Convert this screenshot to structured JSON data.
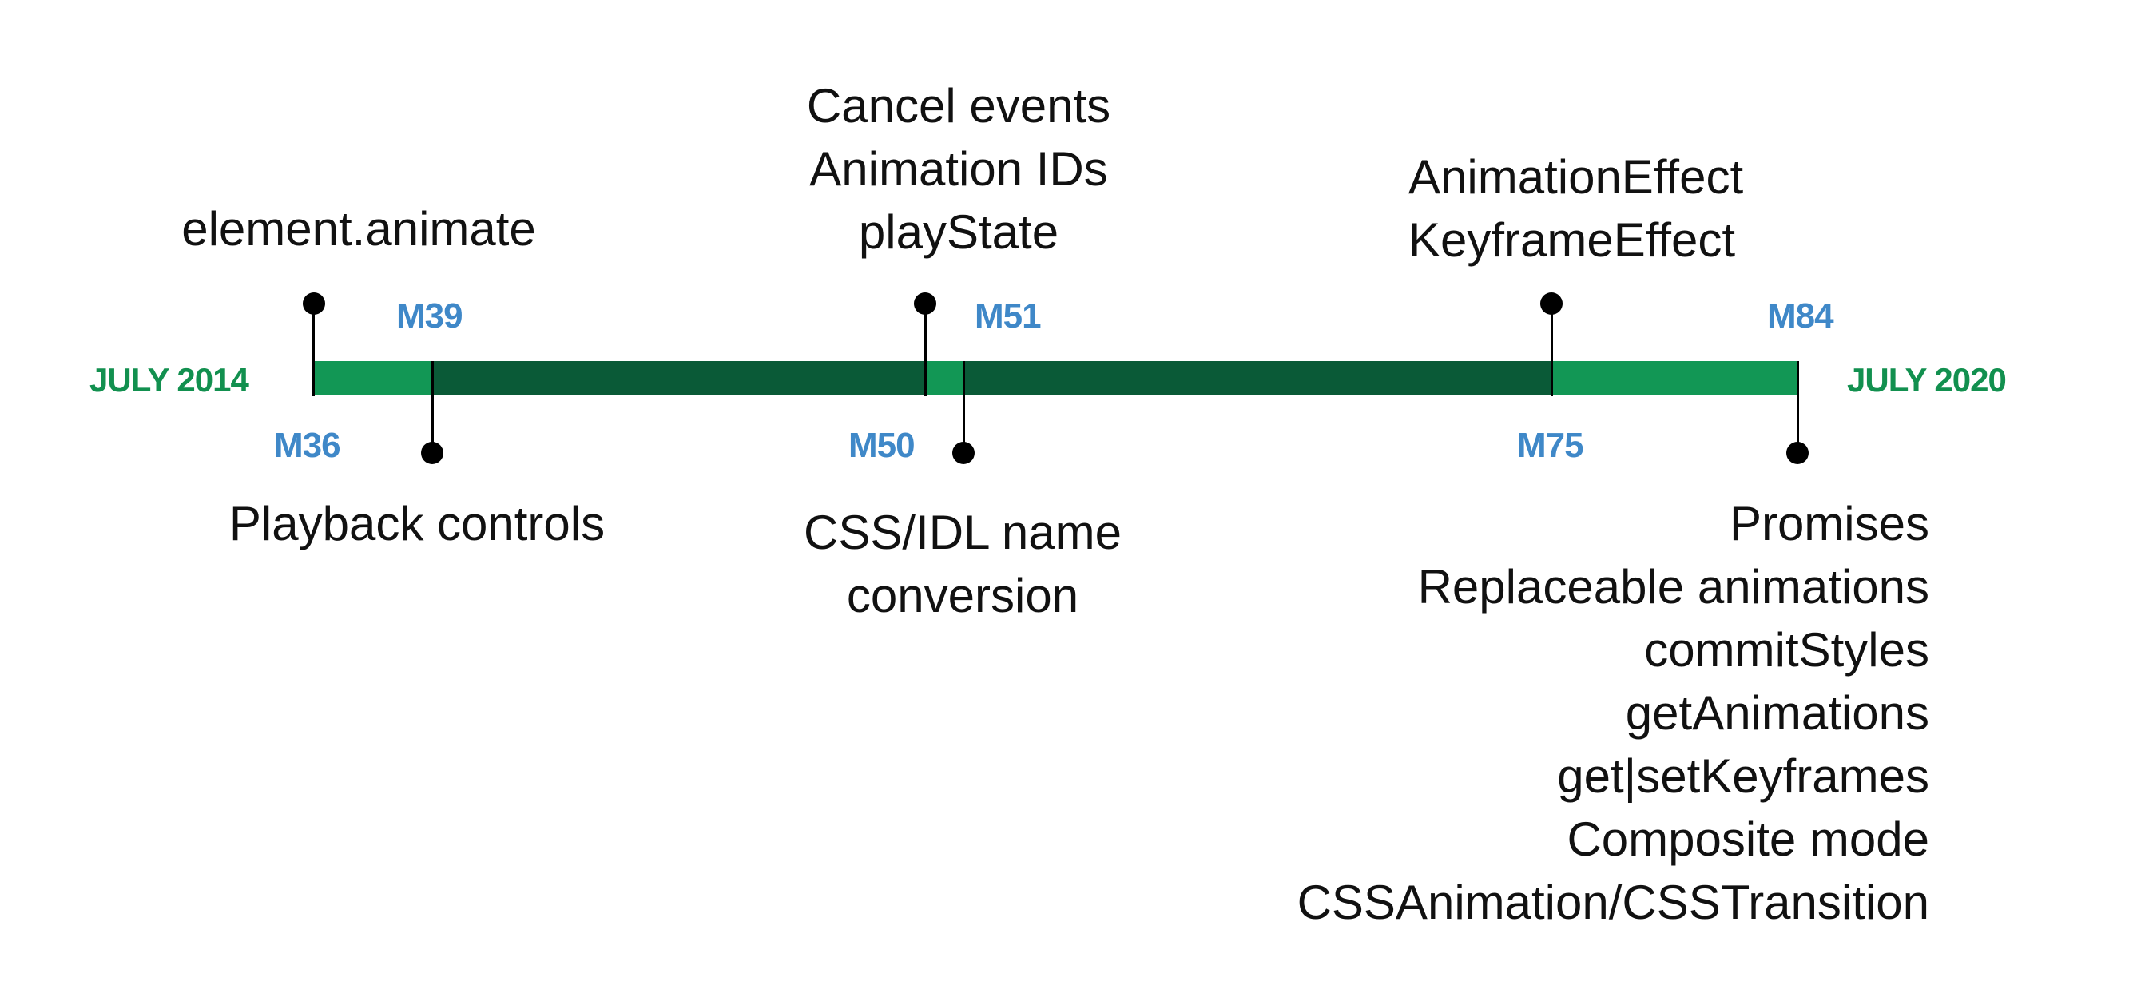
{
  "start_date": "JULY 2014",
  "end_date": "JULY 2020",
  "colors": {
    "bar_light": "#129755",
    "bar_dark": "#0a5a37",
    "milestone": "#3f88c8",
    "date": "#12904f"
  },
  "milestones": [
    {
      "label": "M36",
      "side": "above",
      "features": [
        "element.animate"
      ]
    },
    {
      "label": "M39",
      "side": "below",
      "features": [
        "Playback controls"
      ]
    },
    {
      "label": "M50",
      "side": "above",
      "features": [
        "Cancel events",
        "Animation IDs",
        "playState"
      ]
    },
    {
      "label": "M51",
      "side": "below",
      "features": [
        "CSS/IDL name",
        "conversion"
      ]
    },
    {
      "label": "M75",
      "side": "above",
      "features": [
        "AnimationEffect",
        "KeyframeEffect"
      ]
    },
    {
      "label": "M84",
      "side": "below",
      "features": [
        "Promises",
        "Replaceable animations",
        "commitStyles",
        "getAnimations",
        "get|setKeyframes",
        "Composite mode",
        "CSSAnimation/CSSTransition"
      ]
    }
  ]
}
